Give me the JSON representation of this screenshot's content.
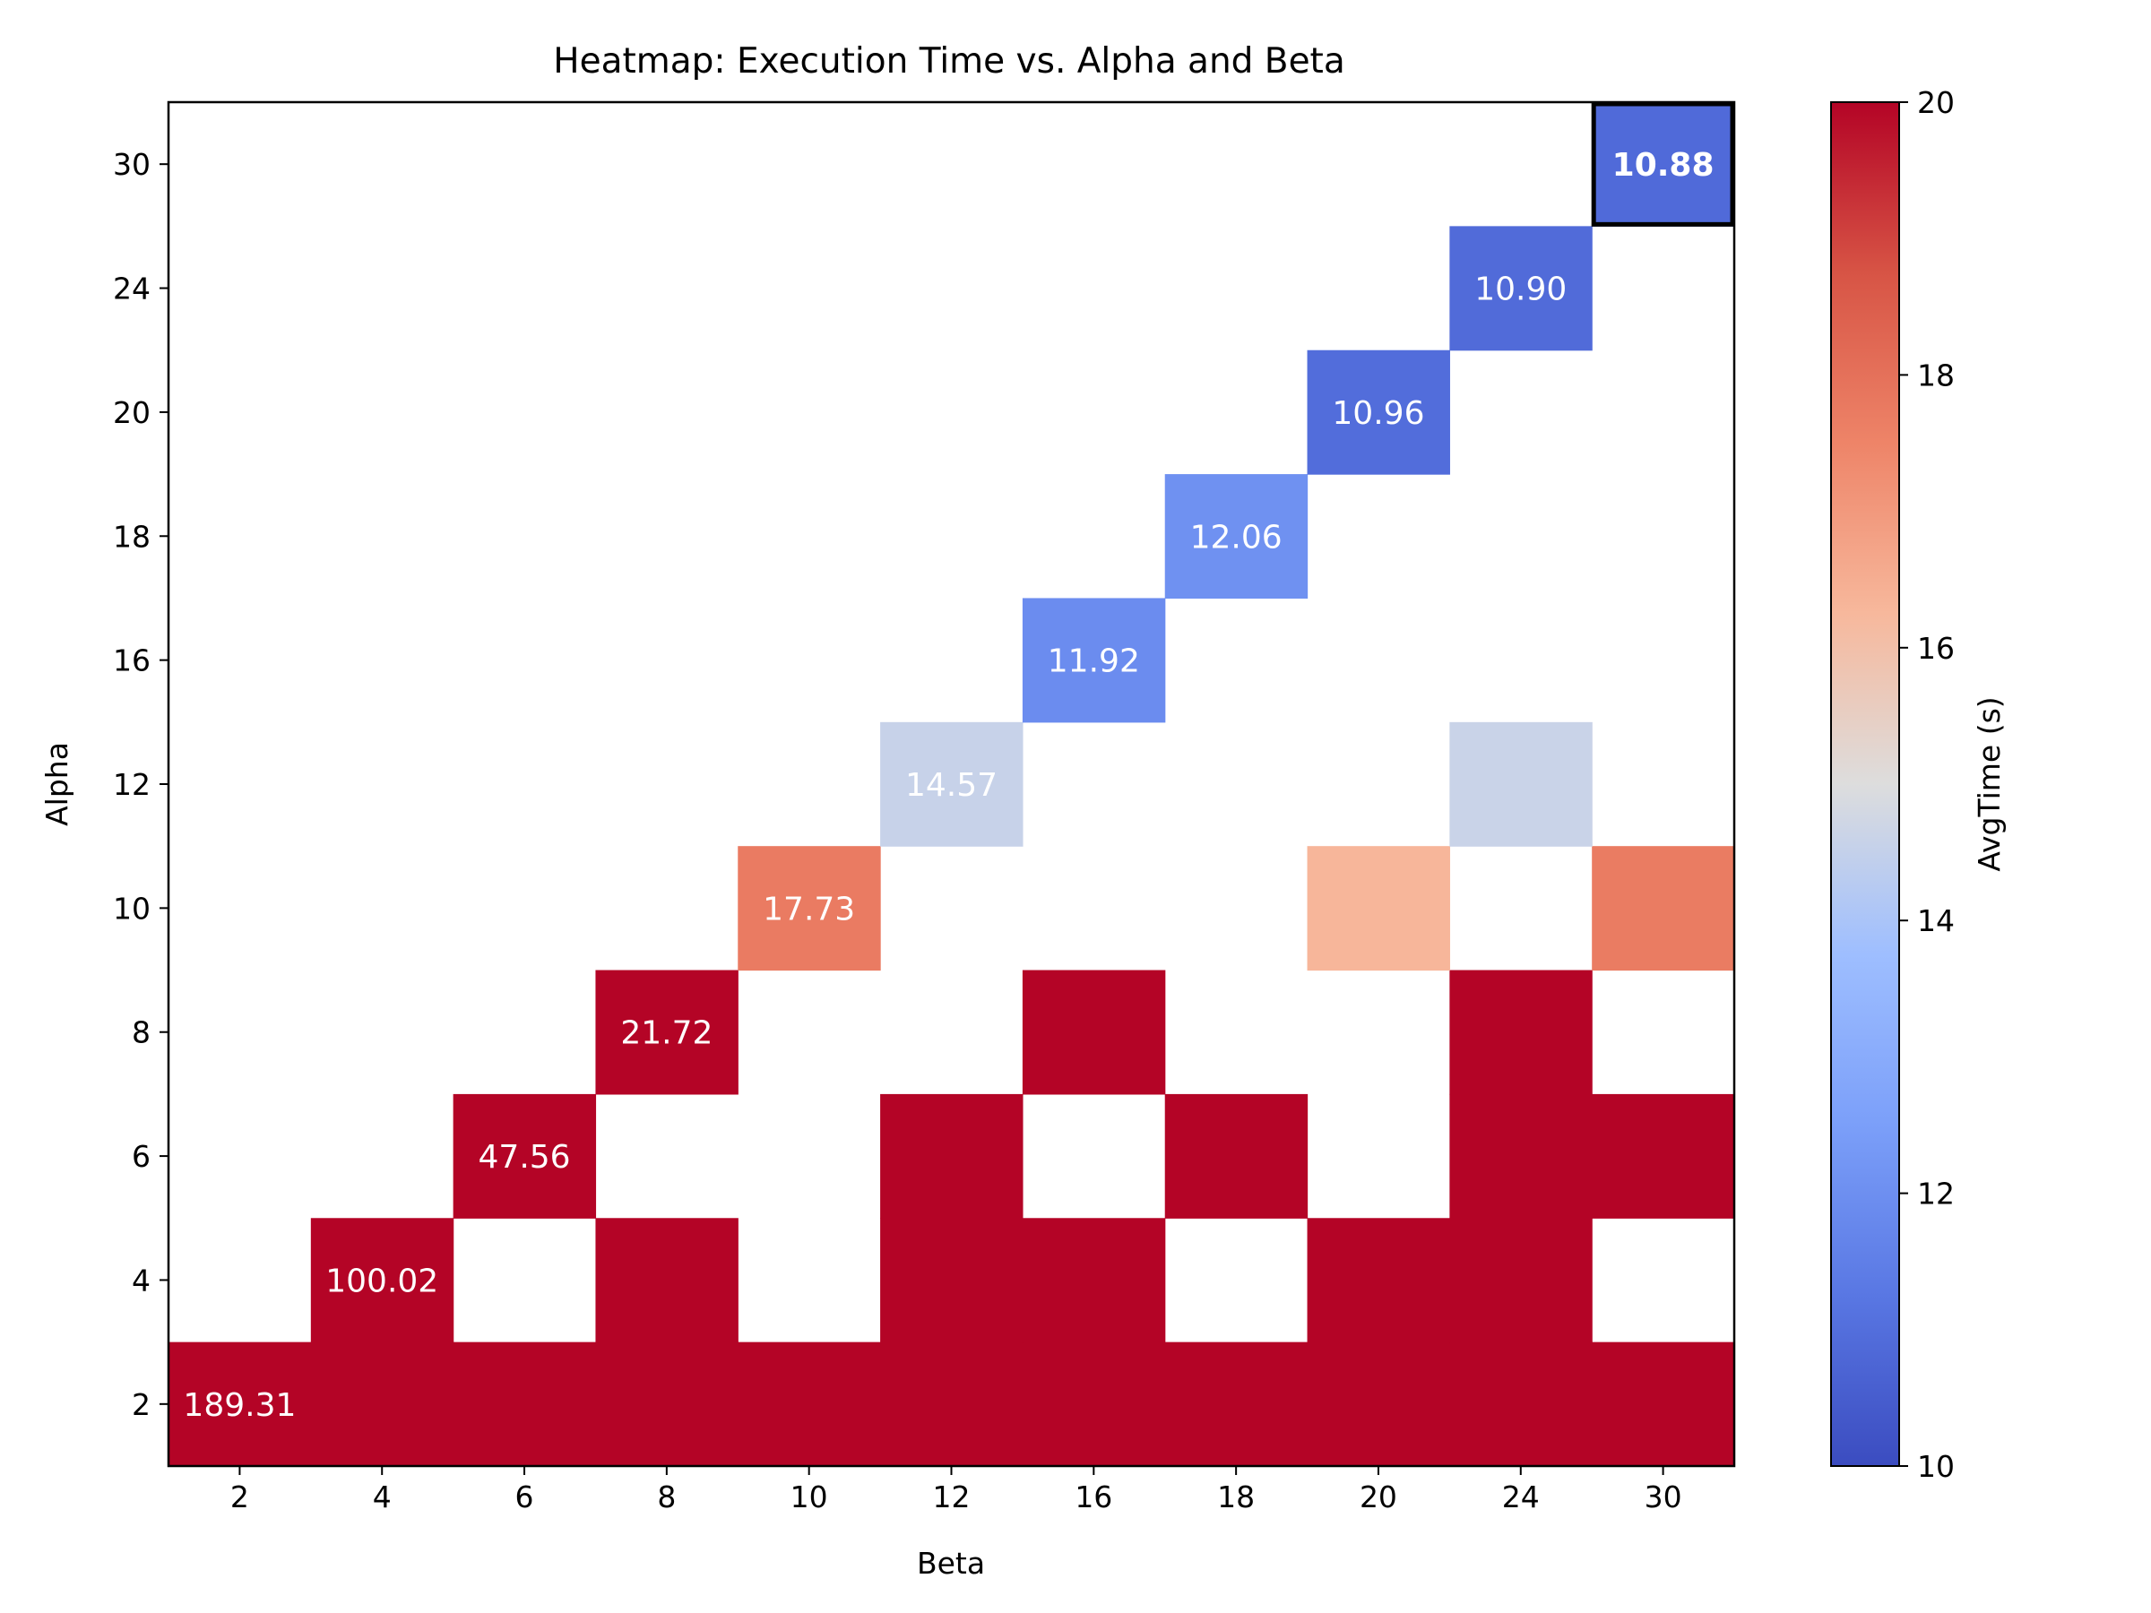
{
  "chart_data": {
    "type": "heatmap",
    "title": "Heatmap: Execution Time vs. Alpha and Beta",
    "xlabel": "Beta",
    "ylabel": "Alpha",
    "x_categories": [
      "2",
      "4",
      "6",
      "8",
      "10",
      "12",
      "16",
      "18",
      "20",
      "24",
      "30"
    ],
    "y_categories": [
      "2",
      "4",
      "6",
      "8",
      "10",
      "12",
      "16",
      "18",
      "20",
      "24",
      "30"
    ],
    "colormap": "coolwarm",
    "colorbar": {
      "label": "AvgTime (s)",
      "vmin": 10,
      "vmax": 20,
      "ticks": [
        "10",
        "12",
        "14",
        "16",
        "18",
        "20"
      ]
    },
    "cells": [
      {
        "alpha": "2",
        "beta": "2",
        "value": 189.31,
        "label": "189.31"
      },
      {
        "alpha": "2",
        "beta": "4",
        "value": 20
      },
      {
        "alpha": "2",
        "beta": "6",
        "value": 20
      },
      {
        "alpha": "2",
        "beta": "8",
        "value": 20
      },
      {
        "alpha": "2",
        "beta": "10",
        "value": 20
      },
      {
        "alpha": "2",
        "beta": "12",
        "value": 20
      },
      {
        "alpha": "2",
        "beta": "16",
        "value": 20
      },
      {
        "alpha": "2",
        "beta": "18",
        "value": 20
      },
      {
        "alpha": "2",
        "beta": "20",
        "value": 20
      },
      {
        "alpha": "2",
        "beta": "24",
        "value": 20
      },
      {
        "alpha": "2",
        "beta": "30",
        "value": 20
      },
      {
        "alpha": "4",
        "beta": "4",
        "value": 100.02,
        "label": "100.02"
      },
      {
        "alpha": "4",
        "beta": "8",
        "value": 20
      },
      {
        "alpha": "4",
        "beta": "12",
        "value": 20
      },
      {
        "alpha": "4",
        "beta": "16",
        "value": 20
      },
      {
        "alpha": "4",
        "beta": "20",
        "value": 20
      },
      {
        "alpha": "4",
        "beta": "24",
        "value": 20
      },
      {
        "alpha": "6",
        "beta": "6",
        "value": 47.56,
        "label": "47.56"
      },
      {
        "alpha": "6",
        "beta": "12",
        "value": 20
      },
      {
        "alpha": "6",
        "beta": "18",
        "value": 20
      },
      {
        "alpha": "6",
        "beta": "24",
        "value": 20
      },
      {
        "alpha": "6",
        "beta": "30",
        "value": 20
      },
      {
        "alpha": "8",
        "beta": "8",
        "value": 21.72,
        "label": "21.72"
      },
      {
        "alpha": "8",
        "beta": "16",
        "value": 20
      },
      {
        "alpha": "8",
        "beta": "24",
        "value": 20
      },
      {
        "alpha": "10",
        "beta": "10",
        "value": 17.73,
        "label": "17.73"
      },
      {
        "alpha": "10",
        "beta": "20",
        "value": 16.3
      },
      {
        "alpha": "10",
        "beta": "30",
        "value": 17.7
      },
      {
        "alpha": "12",
        "beta": "12",
        "value": 14.57,
        "label": "14.57"
      },
      {
        "alpha": "12",
        "beta": "24",
        "value": 14.6
      },
      {
        "alpha": "16",
        "beta": "16",
        "value": 11.92,
        "label": "11.92"
      },
      {
        "alpha": "18",
        "beta": "18",
        "value": 12.06,
        "label": "12.06"
      },
      {
        "alpha": "20",
        "beta": "20",
        "value": 10.96,
        "label": "10.96"
      },
      {
        "alpha": "24",
        "beta": "24",
        "value": 10.9,
        "label": "10.90"
      },
      {
        "alpha": "30",
        "beta": "30",
        "value": 10.88,
        "label": "10.88",
        "highlight": true
      }
    ]
  }
}
